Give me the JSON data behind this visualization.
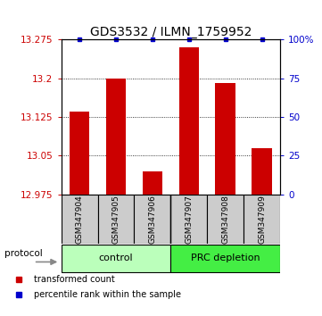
{
  "title": "GDS3532 / ILMN_1759952",
  "samples": [
    "GSM347904",
    "GSM347905",
    "GSM347906",
    "GSM347907",
    "GSM347908",
    "GSM347909"
  ],
  "bar_values": [
    13.135,
    13.2,
    13.02,
    13.26,
    13.19,
    13.065
  ],
  "percentile_ranks": [
    100,
    100,
    100,
    100,
    100,
    100
  ],
  "ylim": [
    12.975,
    13.275
  ],
  "yticks": [
    12.975,
    13.05,
    13.125,
    13.2,
    13.275
  ],
  "ytick_labels": [
    "12.975",
    "13.05",
    "13.125",
    "13.2",
    "13.275"
  ],
  "right_yticks": [
    0,
    25,
    50,
    75,
    100
  ],
  "right_ytick_labels": [
    "0",
    "25",
    "50",
    "75",
    "100%"
  ],
  "bar_color": "#cc0000",
  "percentile_color": "#0000cc",
  "bar_width": 0.55,
  "groups": [
    {
      "label": "control",
      "samples": [
        0,
        1,
        2
      ],
      "color": "#bbffbb"
    },
    {
      "label": "PRC depletion",
      "samples": [
        3,
        4,
        5
      ],
      "color": "#44ee44"
    }
  ],
  "protocol_label": "protocol",
  "legend_items": [
    {
      "label": "transformed count",
      "color": "#cc0000"
    },
    {
      "label": "percentile rank within the sample",
      "color": "#0000cc"
    }
  ],
  "background_color": "#ffffff",
  "title_fontsize": 10,
  "tick_fontsize": 7.5,
  "sample_box_color": "#cccccc",
  "sample_fontsize": 6.5,
  "group_fontsize": 8,
  "legend_fontsize": 7
}
